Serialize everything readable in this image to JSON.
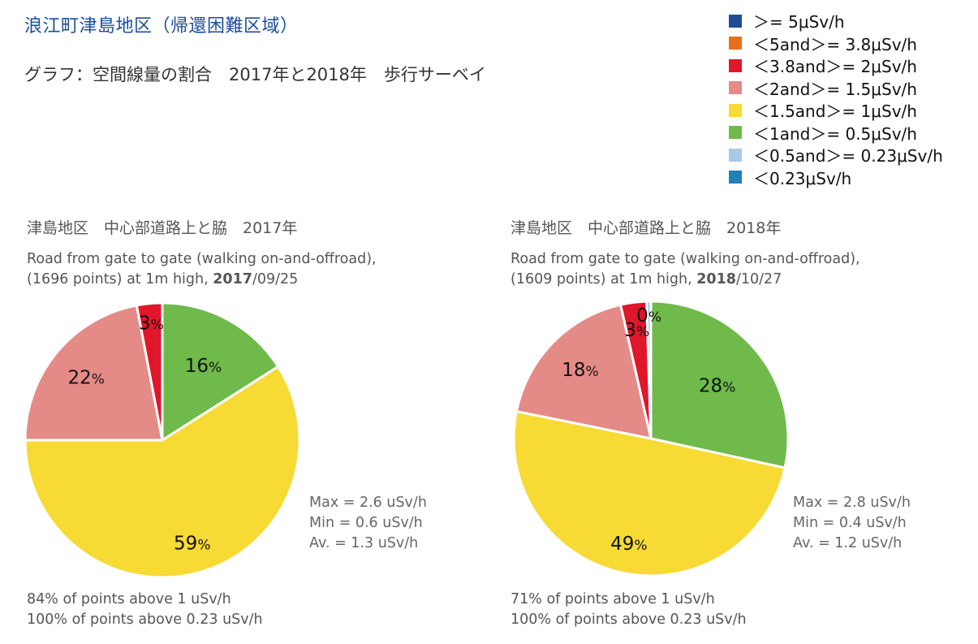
{
  "title": "浪江町津島地区（帰還困難区域）",
  "subtitle": "グラフ：空間線量の割合　2017年と2018年　歩行サーベイ",
  "legend": [
    {
      "label": "＞= 5μSv/h",
      "color": "#1f4e96"
    },
    {
      "label": "＜5and＞= 3.8μSv/h",
      "color": "#e8701a"
    },
    {
      "label": "＜3.8and＞= 2μSv/h",
      "color": "#e0162b"
    },
    {
      "label": "＜2and＞= 1.5μSv/h",
      "color": "#e48b87"
    },
    {
      "label": "＜1.5and＞= 1μSv/h",
      "color": "#f7da33"
    },
    {
      "label": "＜1and＞= 0.5μSv/h",
      "color": "#6fba4b"
    },
    {
      "label": "＜0.5and＞= 0.23μSv/h",
      "color": "#a8c8e8"
    },
    {
      "label": "＜0.23μSv/h",
      "color": "#2180b8"
    }
  ],
  "charts": [
    {
      "heading": "津島地区　中心部道路上と脇　2017年",
      "desc_line1": "Road from gate to gate (walking on-and-offroad),",
      "desc_line2_pre": "(1696 points) at 1m high, ",
      "desc_line2_bold": "2017",
      "desc_line2_post": "/09/25",
      "stats": [
        "Max = 2.6 uSv/h",
        "Min = 0.6 uSv/h",
        "Av. = 1.3 uSv/h"
      ],
      "notes": [
        "84% of points above 1 uSv/h",
        "100% of points above 0.23 uSv/h"
      ]
    },
    {
      "heading": "津島地区　中心部道路上と脇　2018年",
      "desc_line1": "Road from gate to gate (walking on-and-offroad),",
      "desc_line2_pre": "(1609 points) at 1m high, ",
      "desc_line2_bold": "2018",
      "desc_line2_post": "/10/27",
      "stats": [
        "Max = 2.8 uSv/h",
        "Min = 0.4 uSv/h",
        "Av. = 1.2 uSv/h"
      ],
      "notes": [
        "71% of points above 1 uSv/h",
        "100% of points above 0.23 uSv/h"
      ]
    }
  ],
  "chart_data": [
    {
      "type": "pie",
      "title": "津島地区　中心部道路上と脇　2017年",
      "slices": [
        {
          "label": "＜1and＞= 0.5μSv/h",
          "value": 16,
          "color": "#6fba4b",
          "text": "16"
        },
        {
          "label": "＜1.5and＞= 1μSv/h",
          "value": 59,
          "color": "#f7da33",
          "text": "59"
        },
        {
          "label": "＜2and＞= 1.5μSv/h",
          "value": 22,
          "color": "#e48b87",
          "text": "22"
        },
        {
          "label": "＜3.8and＞= 2μSv/h",
          "value": 3,
          "color": "#e0162b",
          "text": "3"
        }
      ]
    },
    {
      "type": "pie",
      "title": "津島地区　中心部道路上と脇　2018年",
      "slices": [
        {
          "label": "＜1and＞= 0.5μSv/h",
          "value": 28,
          "color": "#6fba4b",
          "text": "28"
        },
        {
          "label": "＜1.5and＞= 1μSv/h",
          "value": 49,
          "color": "#f7da33",
          "text": "49"
        },
        {
          "label": "＜2and＞= 1.5μSv/h",
          "value": 18,
          "color": "#e48b87",
          "text": "18"
        },
        {
          "label": "＜3.8and＞= 2μSv/h",
          "value": 3,
          "color": "#e0162b",
          "text": "3"
        },
        {
          "label": "＜0.5and＞= 0.23μSv/h",
          "value": 0.5,
          "color": "#a8c8e8",
          "text": "0"
        }
      ]
    }
  ]
}
